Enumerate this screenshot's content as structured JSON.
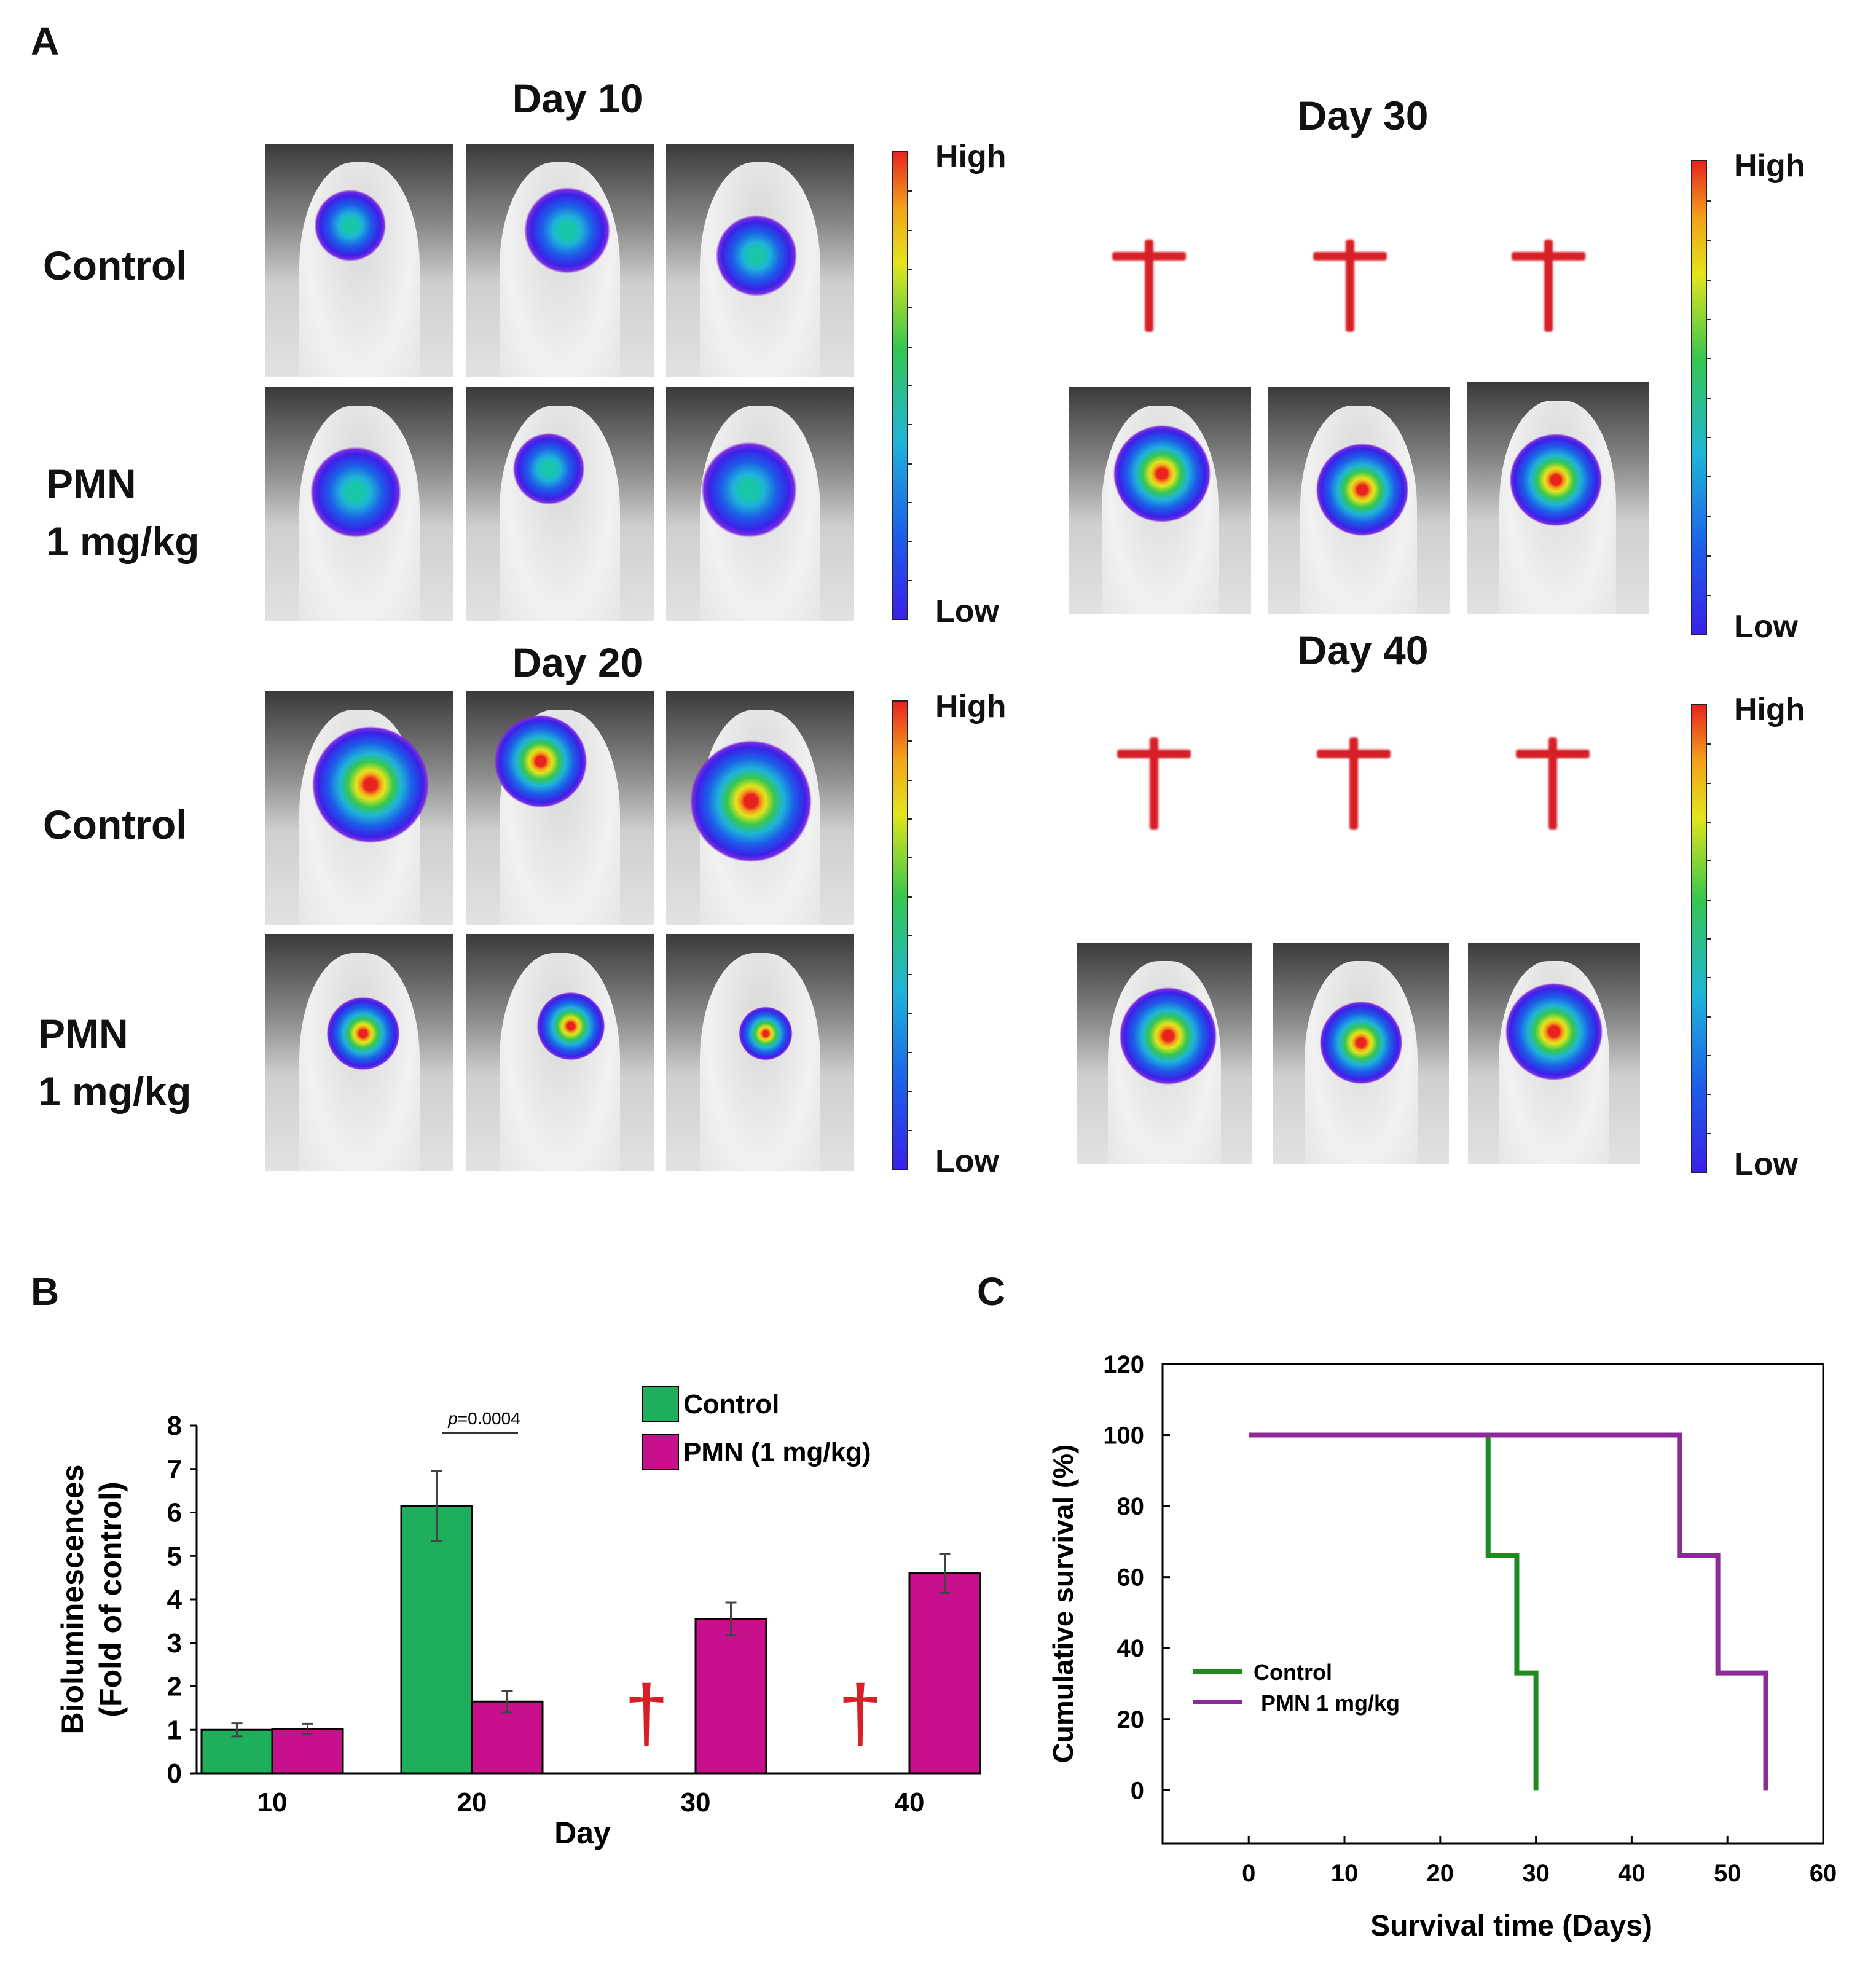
{
  "panels": {
    "a": "A",
    "b": "B",
    "c": "C"
  },
  "imaging": {
    "day10_title": "Day 10",
    "day20_title": "Day 20",
    "day30_title": "Day 30",
    "day40_title": "Day 40",
    "control_label": "Control",
    "pmn_label_line1": "PMN",
    "pmn_label_line2": "1 mg/kg",
    "scale_high": "High",
    "scale_low": "Low",
    "death_marker": "†"
  },
  "colors": {
    "control": "#1fae5b",
    "pmn_bar": "#c8108c",
    "pmn_line": "#8b2b97",
    "control_line": "#1f8a1f",
    "cross": "#d61f26"
  },
  "chart_data": [
    {
      "type": "bar",
      "title": "",
      "xlabel": "Day",
      "ylabel": "Bioluminescences (Fold of control)",
      "ylabel_line1": "Bioluminescences",
      "ylabel_line2": "(Fold of control)",
      "categories": [
        "10",
        "20",
        "30",
        "40"
      ],
      "ylim": [
        0,
        8
      ],
      "yticks": [
        "0",
        "1",
        "2",
        "3",
        "4",
        "5",
        "6",
        "7",
        "8"
      ],
      "series": [
        {
          "name": "Control",
          "values": [
            1.0,
            6.15,
            null,
            null
          ],
          "errors": [
            0.15,
            0.8,
            null,
            null
          ]
        },
        {
          "name": "PMN (1 mg/kg)",
          "values": [
            1.02,
            1.65,
            3.55,
            4.6
          ],
          "errors": [
            0.12,
            0.25,
            0.38,
            0.45
          ]
        }
      ],
      "annotation": {
        "p_label": "p",
        "p_value": "=0.0004"
      },
      "death_markers": [
        "30",
        "40"
      ],
      "legend": "top-right"
    },
    {
      "type": "line",
      "title": "",
      "xlabel": "Survival time (Days)",
      "ylabel": "Cumulative survival (%)",
      "xlim": [
        -9,
        60
      ],
      "ylim": [
        -15,
        120
      ],
      "xticks": [
        "0",
        "10",
        "20",
        "30",
        "40",
        "50",
        "60"
      ],
      "yticks": [
        "0",
        "20",
        "40",
        "60",
        "80",
        "100",
        "120"
      ],
      "series": [
        {
          "name": "Control",
          "x": [
            0,
            25,
            25,
            28,
            28,
            30,
            30
          ],
          "y": [
            100,
            100,
            66,
            66,
            33,
            33,
            0
          ]
        },
        {
          "name": "PMN 1 mg/kg",
          "x": [
            0,
            45,
            45,
            49,
            49,
            54,
            54
          ],
          "y": [
            100,
            100,
            66,
            66,
            33,
            33,
            0
          ]
        }
      ],
      "legend": "middle-left"
    }
  ]
}
